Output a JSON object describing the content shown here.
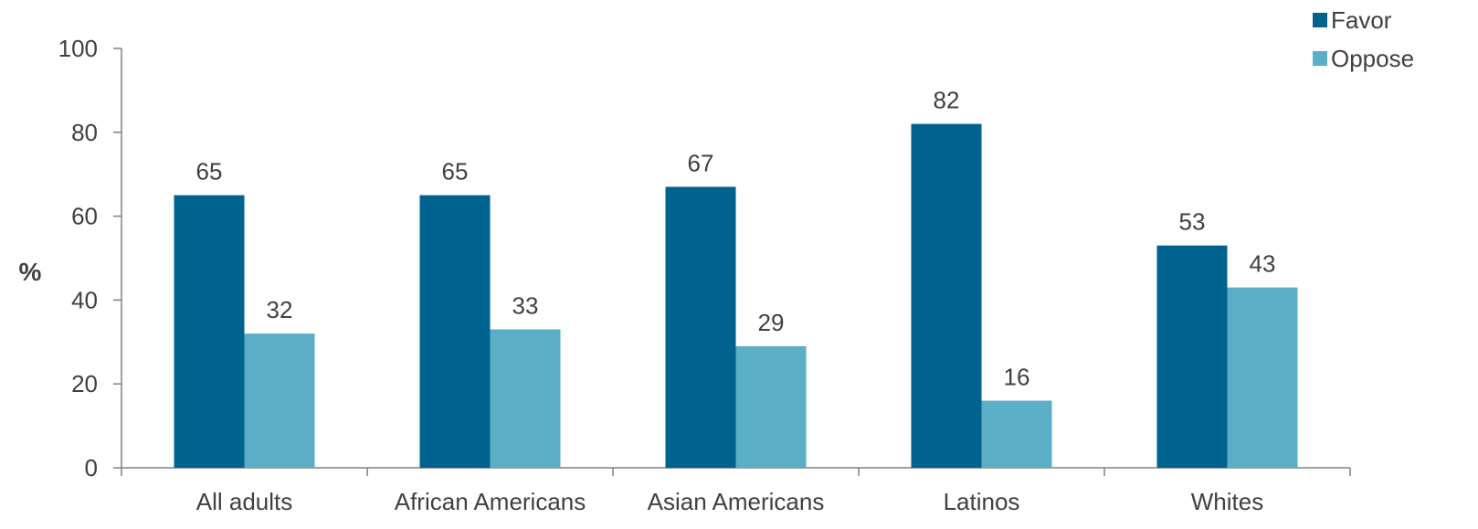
{
  "chart_data": {
    "type": "bar",
    "categories": [
      "All adults",
      "African Americans",
      "Asian Americans",
      "Latinos",
      "Whites"
    ],
    "series": [
      {
        "name": "Favor",
        "values": [
          65,
          65,
          67,
          82,
          53
        ],
        "color": "#00628f"
      },
      {
        "name": "Oppose",
        "values": [
          32,
          33,
          29,
          16,
          43
        ],
        "color": "#5aaec6"
      }
    ],
    "ylabel": "%",
    "ylim": [
      0,
      100
    ],
    "yticks": [
      0,
      20,
      40,
      60,
      80,
      100
    ],
    "grid": false,
    "legend_position": "top-right",
    "colors": {
      "axis": "#808080",
      "text": "#404040"
    }
  }
}
